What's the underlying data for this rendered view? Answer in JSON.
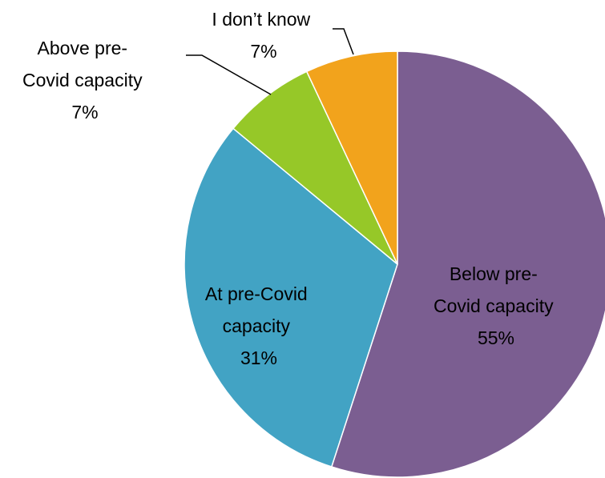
{
  "chart_data": {
    "type": "pie",
    "title": "",
    "slices": [
      {
        "label_lines": [
          "Below pre-",
          "Covid capacity"
        ],
        "value": 55,
        "value_label": "55%",
        "color": "#7b5e91"
      },
      {
        "label_lines": [
          "At pre-Covid",
          "capacity"
        ],
        "value": 31,
        "value_label": "31%",
        "color": "#42a3c4"
      },
      {
        "label_lines": [
          "Above pre-",
          "Covid capacity"
        ],
        "value": 7,
        "value_label": "7%",
        "color": "#96c828"
      },
      {
        "label_lines": [
          "I don’t know"
        ],
        "value": 7,
        "value_label": "7%",
        "color": "#f2a31c"
      }
    ],
    "legend": "none",
    "start": "12 o'clock, clockwise"
  }
}
